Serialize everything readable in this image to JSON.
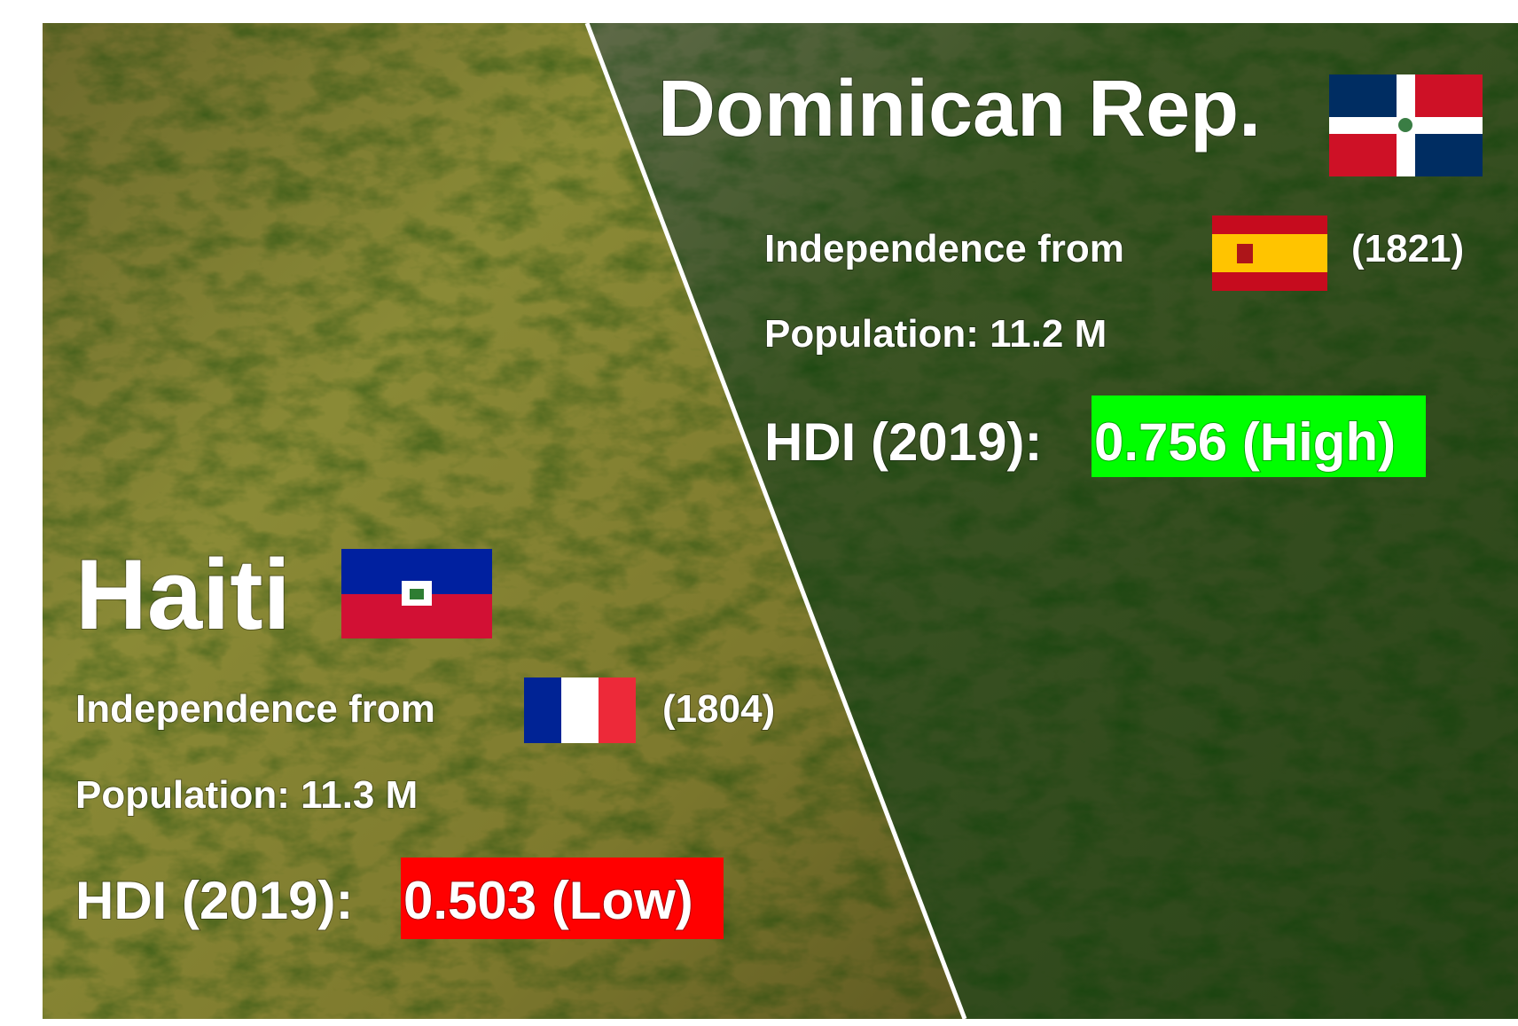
{
  "haiti": {
    "name": "Haiti",
    "independence_label": "Independence from",
    "independence_year": "(1804)",
    "population": "Population: 11.3 M",
    "hdi_label": "HDI (2019):",
    "hdi_value": "0.503 (Low)"
  },
  "dominican_republic": {
    "name": "Dominican Rep.",
    "independence_label": "Independence from",
    "independence_year": "(1821)",
    "population": "Population: 11.2 M",
    "hdi_label": "HDI (2019):",
    "hdi_value": "0.756 (High)"
  }
}
